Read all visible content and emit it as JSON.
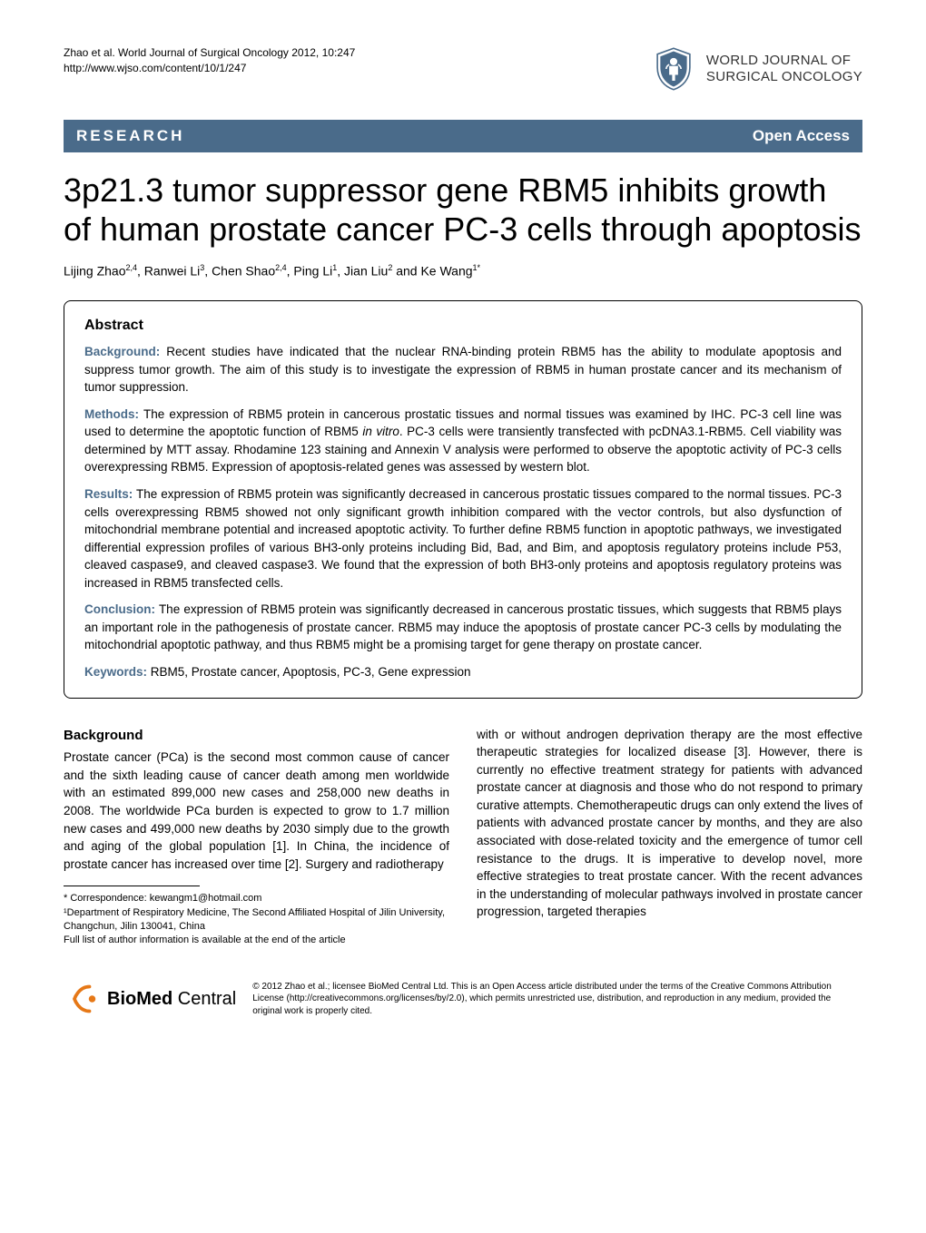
{
  "header": {
    "citation_line": "Zhao et al. World Journal of Surgical Oncology 2012, 10:247",
    "url": "http://www.wjso.com/content/10/1/247",
    "journal_name_line1": "WORLD JOURNAL OF",
    "journal_name_line2": "SURGICAL ONCOLOGY",
    "logo_color": "#4a6b8a"
  },
  "type_bar": {
    "article_type": "RESEARCH",
    "access": "Open Access",
    "bg_color": "#4a6b8a",
    "text_color": "#ffffff"
  },
  "title": "3p21.3 tumor suppressor gene RBM5 inhibits growth of human prostate cancer PC-3 cells through apoptosis",
  "authors_html": "Lijing Zhao<sup>2,4</sup>, Ranwei Li<sup>3</sup>, Chen Shao<sup>2,4</sup>, Ping Li<sup>1</sup>, Jian Liu<sup>2</sup> and Ke Wang<sup>1*</sup>",
  "abstract": {
    "heading": "Abstract",
    "sections": {
      "background": {
        "label": "Background:",
        "text": " Recent studies have indicated that the nuclear RNA-binding protein RBM5 has the ability to modulate apoptosis and suppress tumor growth. The aim of this study is to investigate the expression of RBM5 in human prostate cancer and its mechanism of tumor suppression."
      },
      "methods": {
        "label": "Methods:",
        "text": " The expression of RBM5 protein in cancerous prostatic tissues and normal tissues was examined by IHC. PC-3 cell line was used to determine the apoptotic function of RBM5 in vitro. PC-3 cells were transiently transfected with pcDNA3.1-RBM5. Cell viability was determined by MTT assay. Rhodamine 123 staining and Annexin V analysis were performed to observe the apoptotic activity of PC-3 cells overexpressing RBM5. Expression of apoptosis-related genes was assessed by western blot."
      },
      "results": {
        "label": "Results:",
        "text": " The expression of RBM5 protein was significantly decreased in cancerous prostatic tissues compared to the normal tissues. PC-3 cells overexpressing RBM5 showed not only significant growth inhibition compared with the vector controls, but also dysfunction of mitochondrial membrane potential and increased apoptotic activity. To further define RBM5 function in apoptotic pathways, we investigated differential expression profiles of various BH3-only proteins including Bid, Bad, and Bim, and apoptosis regulatory proteins include P53, cleaved caspase9, and cleaved caspase3. We found that the expression of both BH3-only proteins and apoptosis regulatory proteins was increased in RBM5 transfected cells."
      },
      "conclusion": {
        "label": "Conclusion:",
        "text": " The expression of RBM5 protein was significantly decreased in cancerous prostatic tissues, which suggests that RBM5 plays an important role in the pathogenesis of prostate cancer. RBM5 may induce the apoptosis of prostate cancer PC-3 cells by modulating the mitochondrial apoptotic pathway, and thus RBM5 might be a promising target for gene therapy on prostate cancer."
      },
      "keywords": {
        "label": "Keywords:",
        "text": " RBM5, Prostate cancer, Apoptosis, PC-3, Gene expression"
      }
    }
  },
  "body": {
    "heading": "Background",
    "col1": "Prostate cancer (PCa) is the second most common cause of cancer and the sixth leading cause of cancer death among men worldwide with an estimated 899,000 new cases and 258,000 new deaths in 2008. The worldwide PCa burden is expected to grow to 1.7 million new cases and 499,000 new deaths by 2030 simply due to the growth and aging of the global population [1]. In China, the incidence of prostate cancer has increased over time [2]. Surgery and radiotherapy",
    "col2": "with or without androgen deprivation therapy are the most effective therapeutic strategies for localized disease [3]. However, there is currently no effective treatment strategy for patients with advanced prostate cancer at diagnosis and those who do not respond to primary curative attempts. Chemotherapeutic drugs can only extend the lives of patients with advanced prostate cancer by months, and they are also associated with dose-related toxicity and the emergence of tumor cell resistance to the drugs. It is imperative to develop novel, more effective strategies to treat prostate cancer. With the recent advances in the understanding of molecular pathways involved in prostate cancer progression, targeted therapies"
  },
  "footnotes": {
    "correspondence": "* Correspondence: kewangm1@hotmail.com",
    "affiliation": "¹Department of Respiratory Medicine, The Second Affiliated Hospital of Jilin University, Changchun, Jilin 130041, China",
    "full_list": "Full list of author information is available at the end of the article"
  },
  "footer": {
    "logo_text_prefix": "BioMed",
    "logo_text_suffix": " Central",
    "logo_color": "#e67817",
    "license": "© 2012 Zhao et al.; licensee BioMed Central Ltd. This is an Open Access article distributed under the terms of the Creative Commons Attribution License (http://creativecommons.org/licenses/by/2.0), which permits unrestricted use, distribution, and reproduction in any medium, provided the original work is properly cited."
  }
}
